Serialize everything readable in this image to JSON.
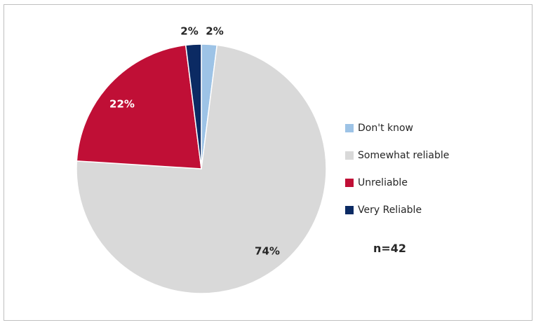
{
  "chart_data": {
    "type": "pie",
    "slices": [
      {
        "label": "Don't know",
        "value": 2,
        "display": "2%",
        "color": "#9dc3e6",
        "label_color": "#262626"
      },
      {
        "label": "Somewhat reliable",
        "value": 74,
        "display": "74%",
        "color": "#d9d9d9",
        "label_color": "#262626"
      },
      {
        "label": "Unreliable",
        "value": 22,
        "display": "22%",
        "color": "#c00f36",
        "label_color": "#ffffff"
      },
      {
        "label": "Very Reliable",
        "value": 2,
        "display": "2%",
        "color": "#0b2a63",
        "label_color": "#262626"
      }
    ],
    "legend_position": "right",
    "annotation": "n=42"
  }
}
